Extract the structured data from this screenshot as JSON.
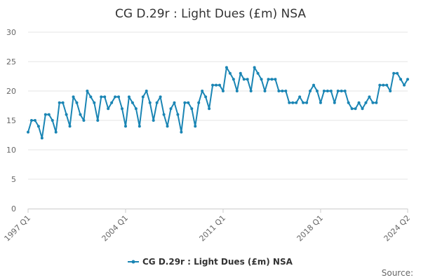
{
  "chart_data": {
    "type": "line",
    "title": "CG D.29r : Light Dues (£m) NSA",
    "source_label": "Source:",
    "legend_position": "bottom",
    "grid": true,
    "ylim": [
      0,
      30
    ],
    "y_ticks": [
      0,
      5,
      10,
      15,
      20,
      25,
      30
    ],
    "x_tick_labels": [
      "1997 Q1",
      "2004 Q1",
      "2011 Q1",
      "2018 Q1",
      "2024 Q2"
    ],
    "series": [
      {
        "name": "CG D.29r : Light Dues (£m) NSA",
        "color": "#1a85b4",
        "x": [
          "1997 Q1",
          "1997 Q2",
          "1997 Q3",
          "1997 Q4",
          "1998 Q1",
          "1998 Q2",
          "1998 Q3",
          "1998 Q4",
          "1999 Q1",
          "1999 Q2",
          "1999 Q3",
          "1999 Q4",
          "2000 Q1",
          "2000 Q2",
          "2000 Q3",
          "2000 Q4",
          "2001 Q1",
          "2001 Q2",
          "2001 Q3",
          "2001 Q4",
          "2002 Q1",
          "2002 Q2",
          "2002 Q3",
          "2002 Q4",
          "2003 Q1",
          "2003 Q2",
          "2003 Q3",
          "2003 Q4",
          "2004 Q1",
          "2004 Q2",
          "2004 Q3",
          "2004 Q4",
          "2005 Q1",
          "2005 Q2",
          "2005 Q3",
          "2005 Q4",
          "2006 Q1",
          "2006 Q2",
          "2006 Q3",
          "2006 Q4",
          "2007 Q1",
          "2007 Q2",
          "2007 Q3",
          "2007 Q4",
          "2008 Q1",
          "2008 Q2",
          "2008 Q3",
          "2008 Q4",
          "2009 Q1",
          "2009 Q2",
          "2009 Q3",
          "2009 Q4",
          "2010 Q1",
          "2010 Q2",
          "2010 Q3",
          "2010 Q4",
          "2011 Q1",
          "2011 Q2",
          "2011 Q3",
          "2011 Q4",
          "2012 Q1",
          "2012 Q2",
          "2012 Q3",
          "2012 Q4",
          "2013 Q1",
          "2013 Q2",
          "2013 Q3",
          "2013 Q4",
          "2014 Q1",
          "2014 Q2",
          "2014 Q3",
          "2014 Q4",
          "2015 Q1",
          "2015 Q2",
          "2015 Q3",
          "2015 Q4",
          "2016 Q1",
          "2016 Q2",
          "2016 Q3",
          "2016 Q4",
          "2017 Q1",
          "2017 Q2",
          "2017 Q3",
          "2017 Q4",
          "2018 Q1",
          "2018 Q2",
          "2018 Q3",
          "2018 Q4",
          "2019 Q1",
          "2019 Q2",
          "2019 Q3",
          "2019 Q4",
          "2020 Q1",
          "2020 Q2",
          "2020 Q3",
          "2020 Q4",
          "2021 Q1",
          "2021 Q2",
          "2021 Q3",
          "2021 Q4",
          "2022 Q1",
          "2022 Q2",
          "2022 Q3",
          "2022 Q4",
          "2023 Q1",
          "2023 Q2",
          "2023 Q3",
          "2023 Q4",
          "2024 Q1",
          "2024 Q2"
        ],
        "values": [
          13,
          15,
          15,
          14,
          12,
          16,
          16,
          15,
          13,
          18,
          18,
          16,
          14,
          19,
          18,
          16,
          15,
          20,
          19,
          18,
          15,
          19,
          19,
          17,
          18,
          19,
          19,
          17,
          14,
          19,
          18,
          17,
          14,
          19,
          20,
          18,
          15,
          18,
          19,
          16,
          14,
          17,
          18,
          16,
          13,
          18,
          18,
          17,
          14,
          18,
          20,
          19,
          17,
          21,
          21,
          21,
          20,
          24,
          23,
          22,
          20,
          23,
          22,
          22,
          20,
          24,
          23,
          22,
          20,
          22,
          22,
          22,
          20,
          20,
          20,
          18,
          18,
          18,
          19,
          18,
          18,
          20,
          21,
          20,
          18,
          20,
          20,
          20,
          18,
          20,
          20,
          20,
          18,
          17,
          17,
          18,
          17,
          18,
          19,
          18,
          18,
          21,
          21,
          21,
          20,
          23,
          23,
          22,
          21,
          22
        ]
      }
    ]
  }
}
